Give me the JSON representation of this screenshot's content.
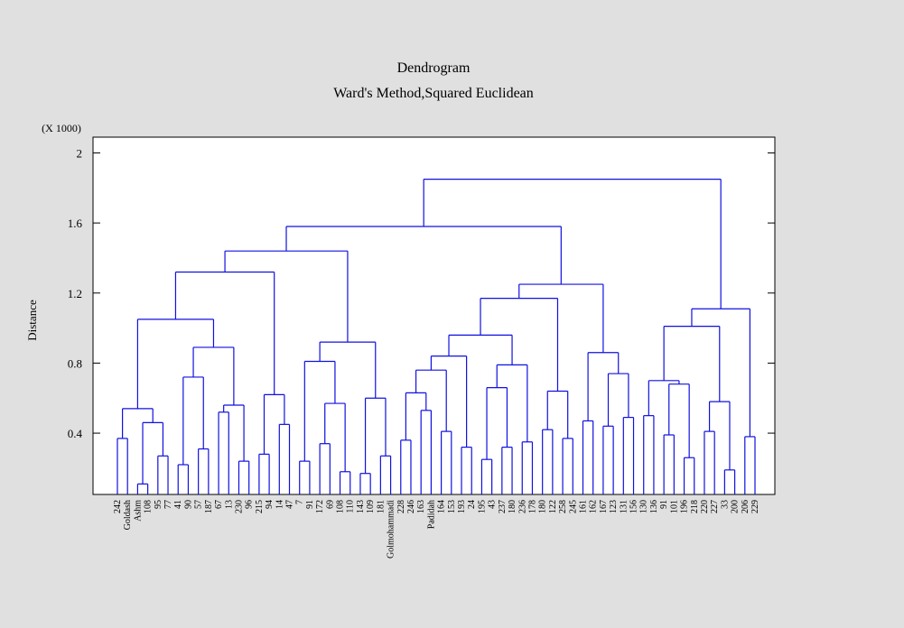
{
  "chart_data": {
    "type": "dendrogram",
    "title": "Dendrogram",
    "subtitle": "Ward's Method,Squared Euclidean",
    "y_label": "Distance",
    "y_multiplier": "(X 1000)",
    "color": "#1010e0",
    "ylim": [
      0.05,
      2.09
    ],
    "yticks": [
      0.4,
      0.8,
      1.2,
      1.6,
      2
    ],
    "tree": {
      "height": 1.85,
      "children": [
        {
          "height": 1.58,
          "children": [
            {
              "height": 1.44,
              "children": [
                {
                  "height": 1.32,
                  "children": [
                    {
                      "height": 1.05,
                      "children": [
                        {
                          "height": 0.54,
                          "children": [
                            {
                              "height": 0.37,
                              "children": [
                                "242",
                                "Goldash"
                              ]
                            },
                            {
                              "height": 0.46,
                              "children": [
                                {
                                  "height": 0.11,
                                  "children": [
                                    "Ashm",
                                    "108"
                                  ]
                                },
                                {
                                  "height": 0.27,
                                  "children": [
                                    "95",
                                    "77"
                                  ]
                                }
                              ]
                            }
                          ]
                        },
                        {
                          "height": 0.89,
                          "children": [
                            {
                              "height": 0.72,
                              "children": [
                                {
                                  "height": 0.22,
                                  "children": [
                                    "41",
                                    "90"
                                  ]
                                },
                                {
                                  "height": 0.31,
                                  "children": [
                                    "57",
                                    "187"
                                  ]
                                }
                              ]
                            },
                            {
                              "height": 0.56,
                              "children": [
                                {
                                  "height": 0.52,
                                  "children": [
                                    "67",
                                    "13"
                                  ]
                                },
                                {
                                  "height": 0.24,
                                  "children": [
                                    "230",
                                    "96"
                                  ]
                                }
                              ]
                            }
                          ]
                        }
                      ]
                    },
                    {
                      "height": 0.62,
                      "children": [
                        {
                          "height": 0.28,
                          "children": [
                            "215",
                            "94"
                          ]
                        },
                        {
                          "height": 0.45,
                          "children": [
                            "14",
                            "47"
                          ]
                        }
                      ]
                    }
                  ]
                },
                {
                  "height": 0.92,
                  "children": [
                    {
                      "height": 0.81,
                      "children": [
                        {
                          "height": 0.24,
                          "children": [
                            "7",
                            "91"
                          ]
                        },
                        {
                          "height": 0.57,
                          "children": [
                            {
                              "height": 0.34,
                              "children": [
                                "172",
                                "69"
                              ]
                            },
                            {
                              "height": 0.18,
                              "children": [
                                "108",
                                "110"
                              ]
                            }
                          ]
                        }
                      ]
                    },
                    {
                      "height": 0.6,
                      "children": [
                        {
                          "height": 0.17,
                          "children": [
                            "143",
                            "109"
                          ]
                        },
                        {
                          "height": 0.27,
                          "children": [
                            "181",
                            "Golmohammadi"
                          ]
                        }
                      ]
                    }
                  ]
                }
              ]
            },
            {
              "height": 1.25,
              "children": [
                {
                  "height": 1.17,
                  "children": [
                    {
                      "height": 0.96,
                      "children": [
                        {
                          "height": 0.84,
                          "children": [
                            {
                              "height": 0.76,
                              "children": [
                                {
                                  "height": 0.63,
                                  "children": [
                                    {
                                      "height": 0.36,
                                      "children": [
                                        "228",
                                        "246"
                                      ]
                                    },
                                    {
                                      "height": 0.53,
                                      "children": [
                                        "163",
                                        "Padidah"
                                      ]
                                    }
                                  ]
                                },
                                {
                                  "height": 0.41,
                                  "children": [
                                    "164",
                                    "153"
                                  ]
                                }
                              ]
                            },
                            {
                              "height": 0.32,
                              "children": [
                                "193",
                                "24"
                              ]
                            }
                          ]
                        },
                        {
                          "height": 0.79,
                          "children": [
                            {
                              "height": 0.66,
                              "children": [
                                {
                                  "height": 0.25,
                                  "children": [
                                    "195",
                                    "43"
                                  ]
                                },
                                {
                                  "height": 0.32,
                                  "children": [
                                    "237",
                                    "180"
                                  ]
                                }
                              ]
                            },
                            {
                              "height": 0.35,
                              "children": [
                                "236",
                                "178"
                              ]
                            }
                          ]
                        }
                      ]
                    },
                    {
                      "height": 0.64,
                      "children": [
                        {
                          "height": 0.42,
                          "children": [
                            "180",
                            "122"
                          ]
                        },
                        {
                          "height": 0.37,
                          "children": [
                            "258",
                            "245"
                          ]
                        }
                      ]
                    }
                  ]
                },
                {
                  "height": 0.86,
                  "children": [
                    {
                      "height": 0.47,
                      "children": [
                        "161",
                        "162"
                      ]
                    },
                    {
                      "height": 0.74,
                      "children": [
                        {
                          "height": 0.44,
                          "children": [
                            "167",
                            "123"
                          ]
                        },
                        {
                          "height": 0.49,
                          "children": [
                            "131",
                            "156"
                          ]
                        }
                      ]
                    }
                  ]
                }
              ]
            }
          ]
        },
        {
          "height": 1.11,
          "children": [
            {
              "height": 1.01,
              "children": [
                {
                  "height": 0.7,
                  "children": [
                    {
                      "height": 0.5,
                      "children": [
                        "130",
                        "136"
                      ]
                    },
                    {
                      "height": 0.68,
                      "children": [
                        {
                          "height": 0.39,
                          "children": [
                            "91",
                            "101"
                          ]
                        },
                        {
                          "height": 0.26,
                          "children": [
                            "196",
                            "218"
                          ]
                        }
                      ]
                    }
                  ]
                },
                {
                  "height": 0.58,
                  "children": [
                    {
                      "height": 0.41,
                      "children": [
                        "220",
                        "227"
                      ]
                    },
                    {
                      "height": 0.19,
                      "children": [
                        "33",
                        "200"
                      ]
                    }
                  ]
                }
              ]
            },
            {
              "height": 0.38,
              "children": [
                "206",
                "229"
              ]
            }
          ]
        }
      ]
    }
  }
}
